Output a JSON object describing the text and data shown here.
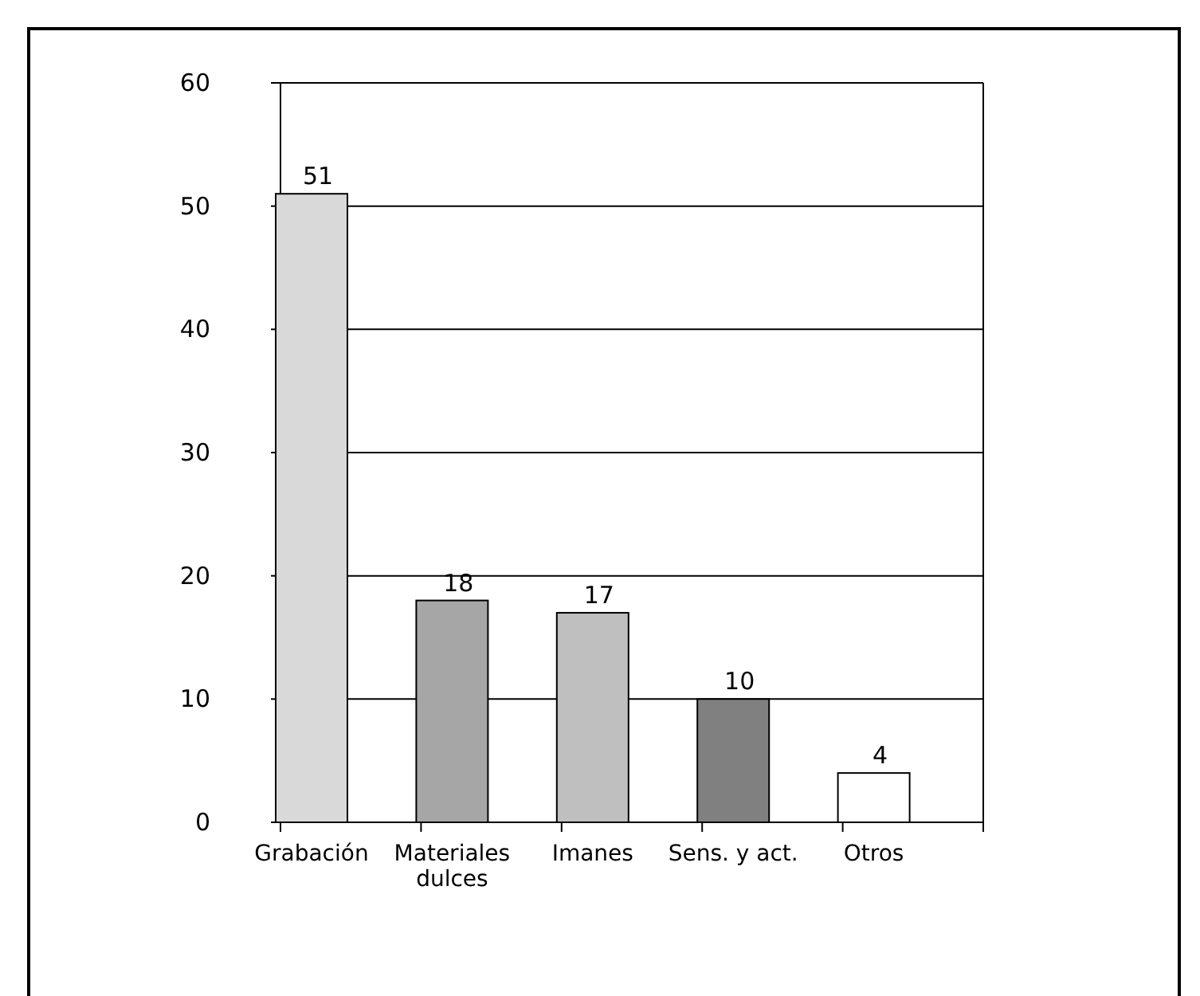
{
  "chart_data": {
    "type": "bar",
    "categories": [
      "Grabación",
      "Materiales dulces",
      "Imanes",
      "Sens. y act.",
      "Otros"
    ],
    "values": [
      51,
      18,
      17,
      10,
      4
    ],
    "colors": [
      "#d9d9d9",
      "#a6a6a6",
      "#bfbfbf",
      "#808080",
      "#ffffff"
    ],
    "ylim": [
      0,
      60
    ],
    "yticks": [
      0,
      10,
      20,
      30,
      40,
      50,
      60
    ],
    "grid": "y",
    "data_labels": true
  }
}
